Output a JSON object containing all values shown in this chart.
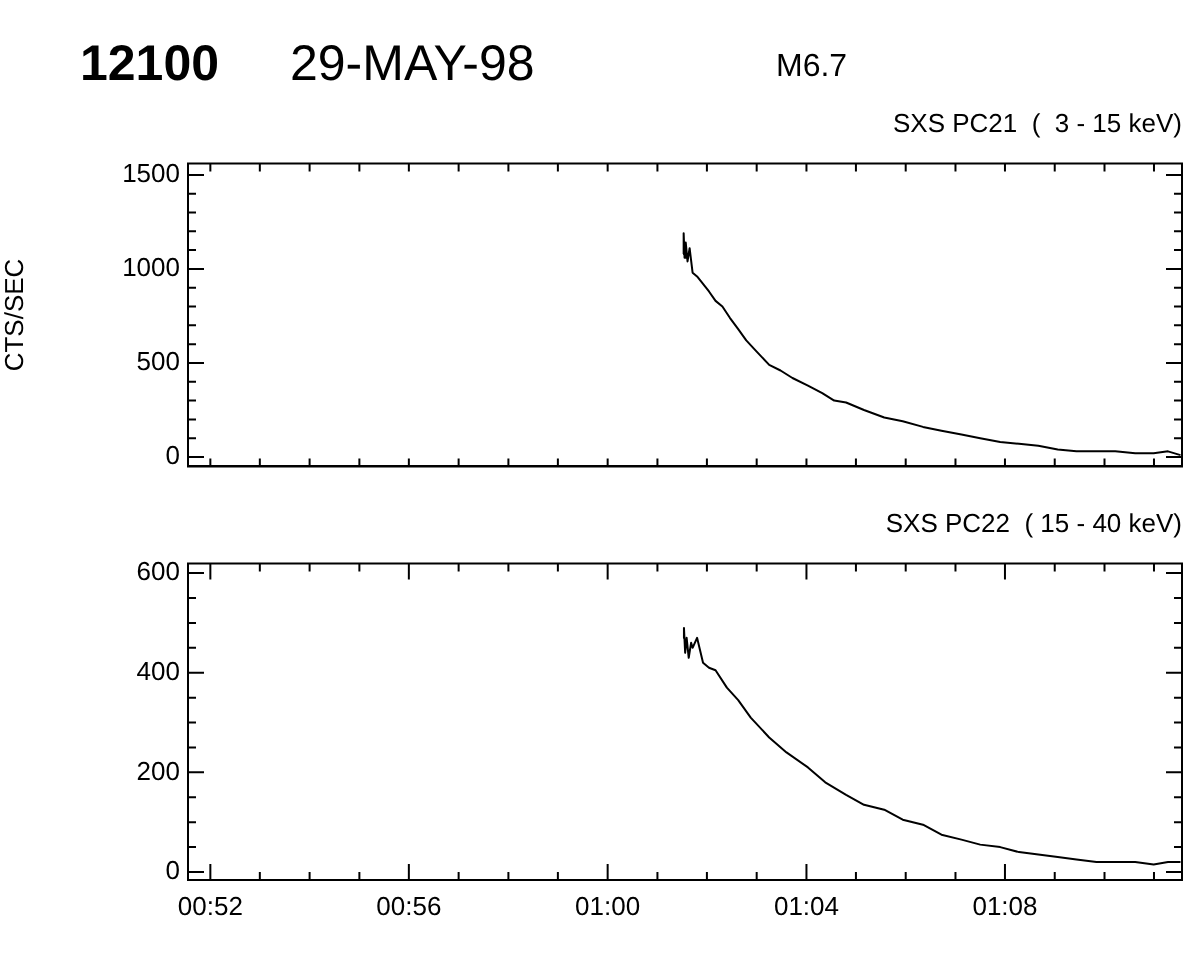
{
  "chart_data": [
    {
      "type": "line",
      "title": "SXS PC21  (  3 - 15 keV)",
      "ylabel": "CTS/SEC",
      "annotations": [
        "12100",
        "29-MAY-98",
        "M6.7"
      ],
      "x": [
        1.0253,
        1.0255,
        1.0258,
        1.0262,
        1.0268,
        1.0275,
        1.0285,
        1.03,
        1.032,
        1.034,
        1.0362,
        1.0385,
        1.041,
        1.0438,
        1.0465,
        1.05,
        1.0542,
        1.058,
        1.062,
        1.0672,
        1.072,
        1.076,
        1.08,
        1.086,
        1.0928,
        1.099,
        1.1058,
        1.112,
        1.1187,
        1.125,
        1.1317,
        1.138,
        1.1445,
        1.151,
        1.1573,
        1.164,
        1.1703,
        1.177,
        1.1832,
        1.188,
        1.1922
      ],
      "series": [
        {
          "color": "#000000",
          "values": [
            1080,
            1190,
            1060,
            1140,
            1040,
            1110,
            980,
            960,
            920,
            880,
            830,
            800,
            740,
            680,
            620,
            560,
            490,
            460,
            420,
            380,
            340,
            300,
            290,
            250,
            210,
            190,
            160,
            140,
            120,
            100,
            80,
            70,
            60,
            40,
            30,
            30,
            30,
            20,
            20,
            30,
            10
          ]
        }
      ],
      "xlim": [
        0.8592,
        1.1927
      ],
      "xticks": [
        {
          "value": 0.8667,
          "label": null
        },
        {
          "value": 0.8833,
          "label": null
        },
        {
          "value": 0.9,
          "label": null
        },
        {
          "value": 0.9167,
          "label": null
        },
        {
          "value": 0.9333,
          "label": null
        },
        {
          "value": 0.95,
          "label": null
        },
        {
          "value": 0.9667,
          "label": null
        },
        {
          "value": 0.9833,
          "label": null
        },
        {
          "value": 1.0,
          "label": null
        },
        {
          "value": 1.0167,
          "label": null
        },
        {
          "value": 1.0333,
          "label": null
        },
        {
          "value": 1.05,
          "label": null
        },
        {
          "value": 1.0667,
          "label": null
        },
        {
          "value": 1.0833,
          "label": null
        },
        {
          "value": 1.1,
          "label": null
        },
        {
          "value": 1.1167,
          "label": null
        },
        {
          "value": 1.1333,
          "label": null
        },
        {
          "value": 1.15,
          "label": null
        },
        {
          "value": 1.1667,
          "label": null
        },
        {
          "value": 1.1833,
          "label": null
        }
      ],
      "ylim": [
        -50,
        1560
      ],
      "yticks": [
        0,
        {
          "value": 100,
          "label": null
        },
        {
          "value": 200,
          "label": null
        },
        {
          "value": 300,
          "label": null
        },
        {
          "value": 400,
          "label": null
        },
        500,
        {
          "value": 600,
          "label": null
        },
        {
          "value": 700,
          "label": null
        },
        {
          "value": 800,
          "label": null
        },
        {
          "value": 900,
          "label": null
        },
        1000,
        {
          "value": 1100,
          "label": null
        },
        {
          "value": 1200,
          "label": null
        },
        {
          "value": 1300,
          "label": null
        },
        {
          "value": 1400,
          "label": null
        },
        1500
      ],
      "tick_labels": "y",
      "marker": "none",
      "legend": false
    },
    {
      "type": "line",
      "title": "SXS PC22  ( 15 - 40 keV)",
      "x": [
        1.0253,
        1.0256,
        1.026,
        1.0265,
        1.0272,
        1.028,
        1.0285,
        1.03,
        1.032,
        1.034,
        1.0362,
        1.04,
        1.0438,
        1.048,
        1.0542,
        1.06,
        1.0672,
        1.073,
        1.08,
        1.086,
        1.0928,
        1.099,
        1.1058,
        1.112,
        1.1187,
        1.125,
        1.1317,
        1.138,
        1.1445,
        1.151,
        1.1573,
        1.164,
        1.1703,
        1.177,
        1.1832,
        1.188,
        1.1922
      ],
      "series": [
        {
          "color": "#000000",
          "values": [
            470,
            490,
            440,
            470,
            430,
            460,
            450,
            470,
            420,
            410,
            405,
            370,
            345,
            310,
            270,
            240,
            210,
            180,
            155,
            135,
            125,
            105,
            95,
            75,
            65,
            55,
            50,
            40,
            35,
            30,
            25,
            20,
            20,
            20,
            15,
            20,
            20
          ]
        }
      ],
      "xlim": [
        0.8592,
        1.1927
      ],
      "xticks": [
        {
          "value": 0.8667,
          "label": "00:52"
        },
        {
          "value": 0.8833,
          "label": null
        },
        {
          "value": 0.9,
          "label": null
        },
        {
          "value": 0.9167,
          "label": null
        },
        {
          "value": 0.9333,
          "label": "00:56"
        },
        {
          "value": 0.95,
          "label": null
        },
        {
          "value": 0.9667,
          "label": null
        },
        {
          "value": 0.9833,
          "label": null
        },
        {
          "value": 1.0,
          "label": "01:00"
        },
        {
          "value": 1.0167,
          "label": null
        },
        {
          "value": 1.0333,
          "label": null
        },
        {
          "value": 1.05,
          "label": null
        },
        {
          "value": 1.0667,
          "label": "01:04"
        },
        {
          "value": 1.0833,
          "label": null
        },
        {
          "value": 1.1,
          "label": null
        },
        {
          "value": 1.1167,
          "label": null
        },
        {
          "value": 1.1333,
          "label": "01:08"
        },
        {
          "value": 1.15,
          "label": null
        },
        {
          "value": 1.1667,
          "label": null
        },
        {
          "value": 1.1833,
          "label": null
        }
      ],
      "ylim": [
        -16,
        619
      ],
      "yticks": [
        0,
        {
          "value": 50,
          "label": null
        },
        {
          "value": 100,
          "label": null
        },
        {
          "value": 150,
          "label": null
        },
        200,
        {
          "value": 250,
          "label": null
        },
        {
          "value": 300,
          "label": null
        },
        {
          "value": 350,
          "label": null
        },
        400,
        {
          "value": 450,
          "label": null
        },
        {
          "value": 500,
          "label": null
        },
        {
          "value": 550,
          "label": null
        },
        600
      ],
      "marker": "none",
      "legend": false
    }
  ]
}
